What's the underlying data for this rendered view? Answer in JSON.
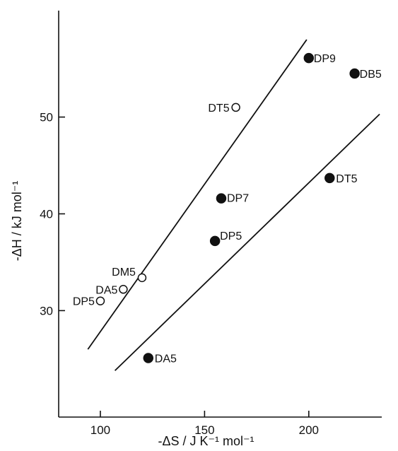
{
  "chart_data": {
    "type": "scatter",
    "xlabel": "-ΔS / J K⁻¹ mol⁻¹",
    "ylabel": "-ΔH / kJ mol⁻¹",
    "xlim": [
      80,
      235
    ],
    "ylim": [
      19,
      61
    ],
    "x_ticks": [
      100,
      150,
      200
    ],
    "y_ticks": [
      30,
      40,
      50
    ],
    "grid": false,
    "points": [
      {
        "label": "DP9",
        "x": 200,
        "y": 56.1,
        "filled": true
      },
      {
        "label": "DB5",
        "x": 222,
        "y": 54.5,
        "filled": true
      },
      {
        "label": "DT5",
        "x": 165,
        "y": 51.0,
        "filled": false
      },
      {
        "label": "DT5",
        "x": 210,
        "y": 43.7,
        "filled": true
      },
      {
        "label": "DP7",
        "x": 158,
        "y": 41.6,
        "filled": true
      },
      {
        "label": "DP5",
        "x": 155,
        "y": 37.2,
        "filled": true
      },
      {
        "label": "DM5",
        "x": 120,
        "y": 33.4,
        "filled": false
      },
      {
        "label": "DA5",
        "x": 111,
        "y": 32.2,
        "filled": false
      },
      {
        "label": "DP5",
        "x": 100,
        "y": 31.0,
        "filled": false
      },
      {
        "label": "DA5",
        "x": 123,
        "y": 25.1,
        "filled": true
      }
    ],
    "lines": [
      {
        "x1": 94,
        "y1": 26.0,
        "x2": 199,
        "y2": 58.0
      },
      {
        "x1": 107,
        "y1": 23.8,
        "x2": 234,
        "y2": 50.3
      }
    ]
  }
}
